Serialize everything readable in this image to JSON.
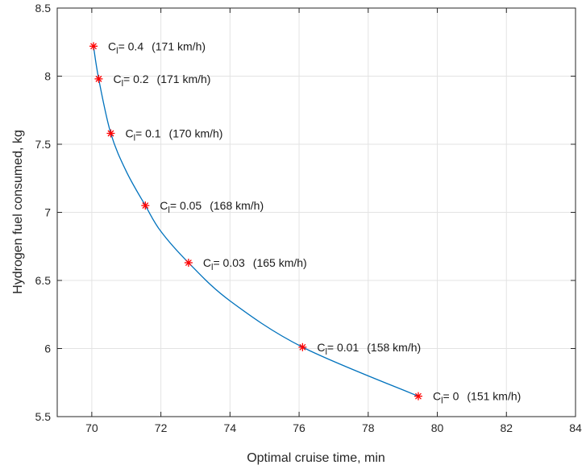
{
  "chart_data": {
    "type": "line",
    "xlabel": "Optimal cruise time, min",
    "ylabel": "Hydrogen fuel consumed, kg",
    "xlim": [
      69,
      84
    ],
    "ylim": [
      5.5,
      8.5
    ],
    "xticks": [
      70,
      72,
      74,
      76,
      78,
      80,
      82,
      84
    ],
    "yticks": [
      5.5,
      6,
      6.5,
      7,
      7.5,
      8,
      8.5
    ],
    "xtick_labels": [
      "70",
      "72",
      "74",
      "76",
      "78",
      "80",
      "82",
      "84"
    ],
    "ytick_labels": [
      "5.5",
      "6",
      "6.5",
      "7",
      "7.5",
      "8",
      "8.5"
    ],
    "grid": true,
    "line_color": "#0072BD",
    "marker_color": "#FF0000",
    "curve": {
      "x": [
        70.05,
        70.2,
        70.55,
        71.0,
        71.55,
        72.0,
        72.8,
        74.0,
        76.1,
        79.45
      ],
      "y": [
        8.22,
        7.98,
        7.58,
        7.3,
        7.05,
        6.86,
        6.63,
        6.35,
        6.01,
        5.65
      ]
    },
    "markers": [
      {
        "x": 70.05,
        "y": 8.22,
        "prefix": "C",
        "sub": "l",
        "value": "= 0.4",
        "speed": "(171 km/h)"
      },
      {
        "x": 70.2,
        "y": 7.98,
        "prefix": "C",
        "sub": "l",
        "value": "= 0.2",
        "speed": "(171 km/h)"
      },
      {
        "x": 70.55,
        "y": 7.58,
        "prefix": "C",
        "sub": "l",
        "value": "= 0.1",
        "speed": "(170 km/h)"
      },
      {
        "x": 71.55,
        "y": 7.05,
        "prefix": "C",
        "sub": "l",
        "value": "= 0.05",
        "speed": "(168 km/h)"
      },
      {
        "x": 72.8,
        "y": 6.63,
        "prefix": "C",
        "sub": "l",
        "value": "= 0.03",
        "speed": "(165 km/h)"
      },
      {
        "x": 76.1,
        "y": 6.01,
        "prefix": "C",
        "sub": "l",
        "value": "= 0.01",
        "speed": "(158 km/h)"
      },
      {
        "x": 79.45,
        "y": 5.65,
        "prefix": "C",
        "sub": "l",
        "value": "= 0",
        "speed": "(151 km/h)"
      }
    ]
  }
}
